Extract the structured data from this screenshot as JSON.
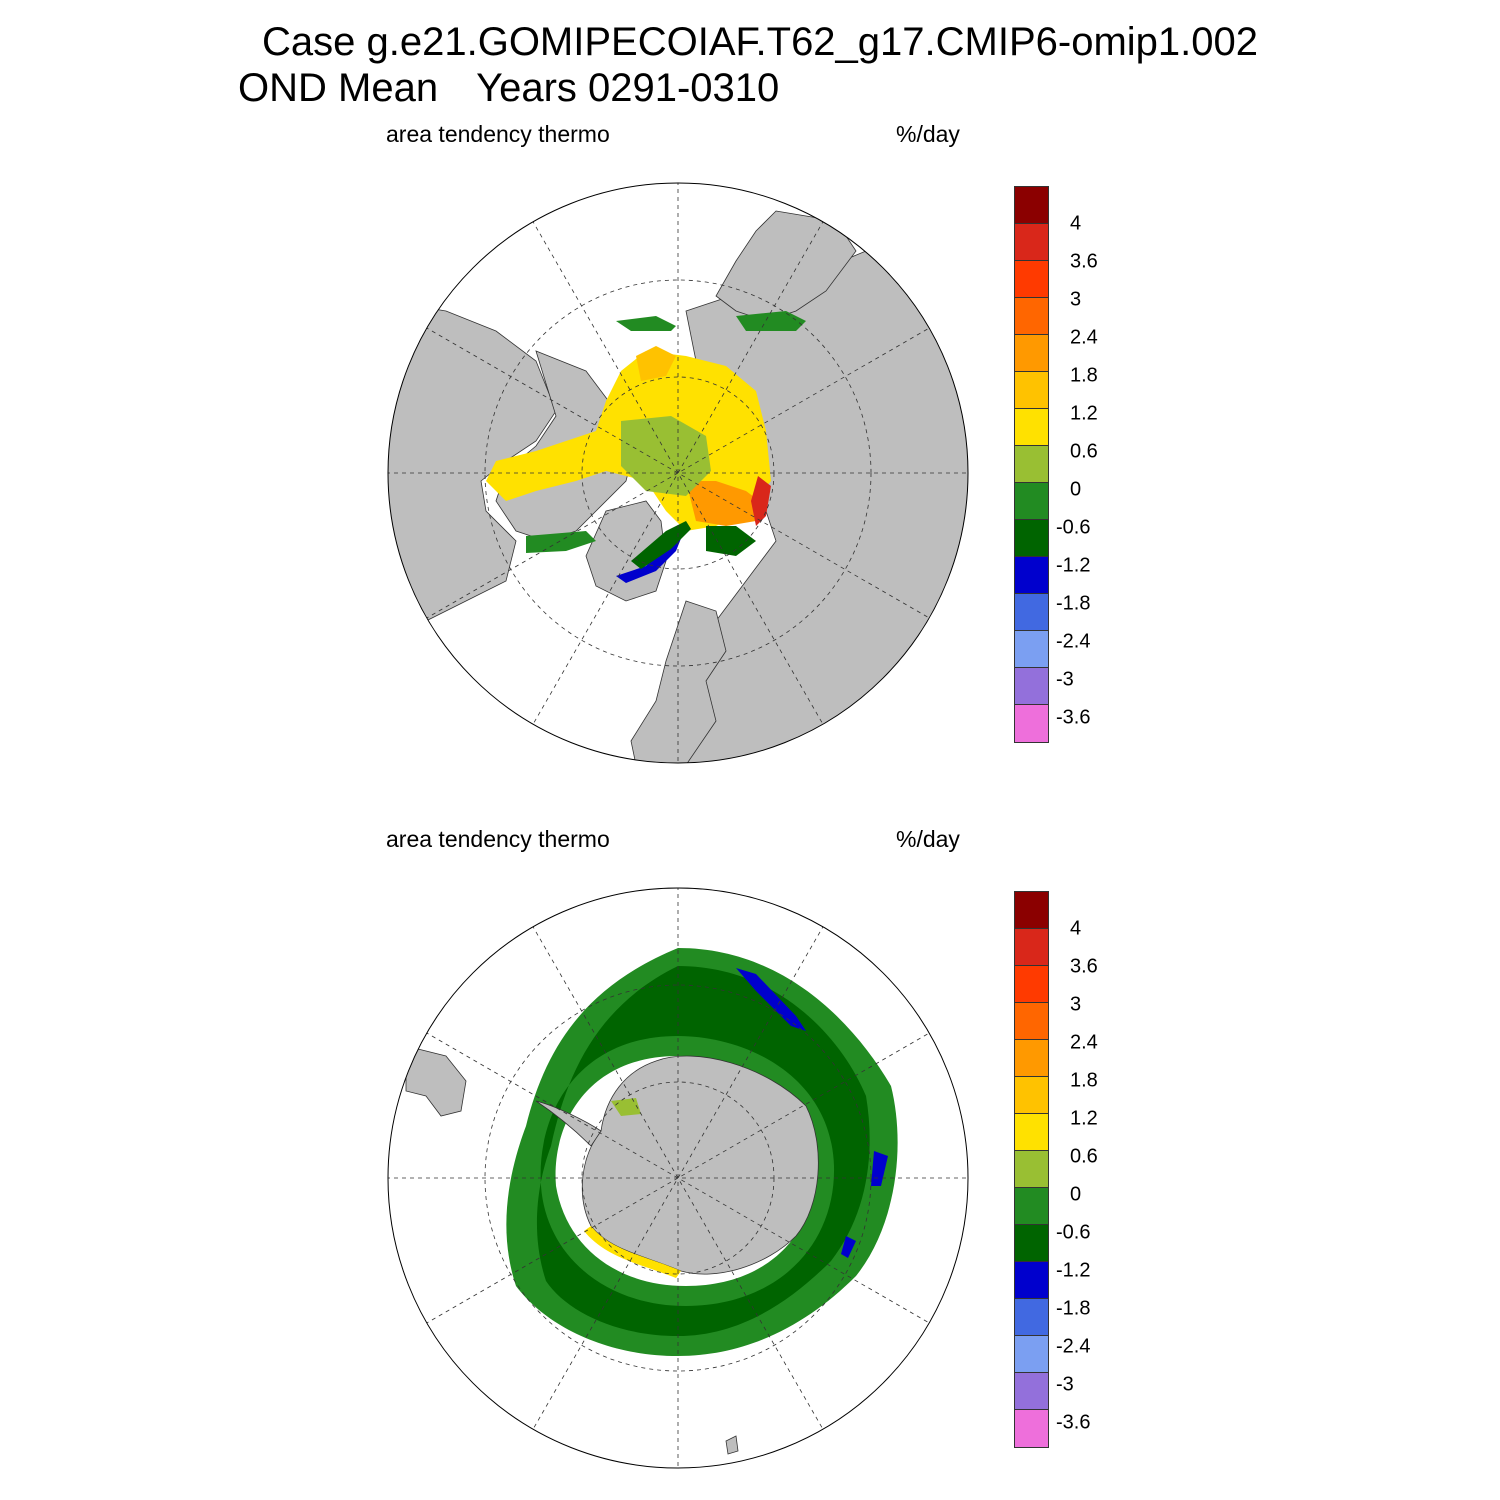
{
  "title": {
    "line1": "Case g.e21.GOMIPECOIAF.T62_g17.CMIP6-omip1.002",
    "line2a": "OND Mean",
    "line2b": "Years 0291-0310"
  },
  "panels": [
    {
      "hemisphere": "north",
      "left_label": "area tendency thermo",
      "right_label": "%/day"
    },
    {
      "hemisphere": "south",
      "left_label": "area tendency thermo",
      "right_label": "%/day"
    }
  ],
  "colorbar": {
    "colors": [
      "#8b0000",
      "#d9271a",
      "#ff3a00",
      "#ff6600",
      "#ff9900",
      "#ffc200",
      "#ffe100",
      "#99bf33",
      "#228b22",
      "#006400",
      "#0000cd",
      "#4169e1",
      "#7b9ff2",
      "#9370db",
      "#ee6fdb"
    ],
    "labels": [
      "4",
      "3.6",
      "3",
      "2.4",
      "1.8",
      "1.2",
      "0.6",
      "0",
      "-0.6",
      "-1.2",
      "-1.8",
      "-2.4",
      "-3",
      "-3.6"
    ]
  },
  "chart_data": {
    "type": "heatmap",
    "title": "Case g.e21.GOMIPECOIAF.T62_g17.CMIP6-omip1.002",
    "subtitle": "OND Mean   Years 0291-0310",
    "variable": "area tendency thermo",
    "units": "%/day",
    "contour_levels": [
      -3.6,
      -3,
      -2.4,
      -1.8,
      -1.2,
      -0.6,
      0,
      0.6,
      1.2,
      1.8,
      2.4,
      3,
      3.6,
      4
    ],
    "maps": [
      "north polar stereographic",
      "south polar stereographic"
    ]
  }
}
